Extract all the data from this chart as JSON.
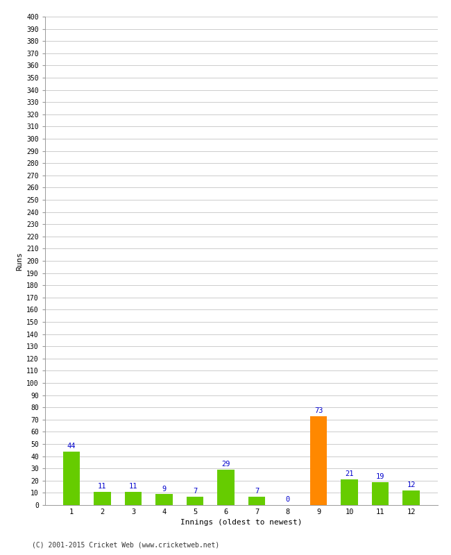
{
  "categories": [
    "1",
    "2",
    "3",
    "4",
    "5",
    "6",
    "7",
    "8",
    "9",
    "10",
    "11",
    "12"
  ],
  "values": [
    44,
    11,
    11,
    9,
    7,
    29,
    7,
    0,
    73,
    21,
    19,
    12
  ],
  "bar_colors": [
    "#66cc00",
    "#66cc00",
    "#66cc00",
    "#66cc00",
    "#66cc00",
    "#66cc00",
    "#66cc00",
    "#66cc00",
    "#ff8800",
    "#66cc00",
    "#66cc00",
    "#66cc00"
  ],
  "xlabel": "Innings (oldest to newest)",
  "ylabel": "Runs",
  "ylim": [
    0,
    400
  ],
  "background_color": "#ffffff",
  "grid_color": "#cccccc",
  "label_color": "#0000cc",
  "footer": "(C) 2001-2015 Cricket Web (www.cricketweb.net)",
  "bar_width": 0.55
}
